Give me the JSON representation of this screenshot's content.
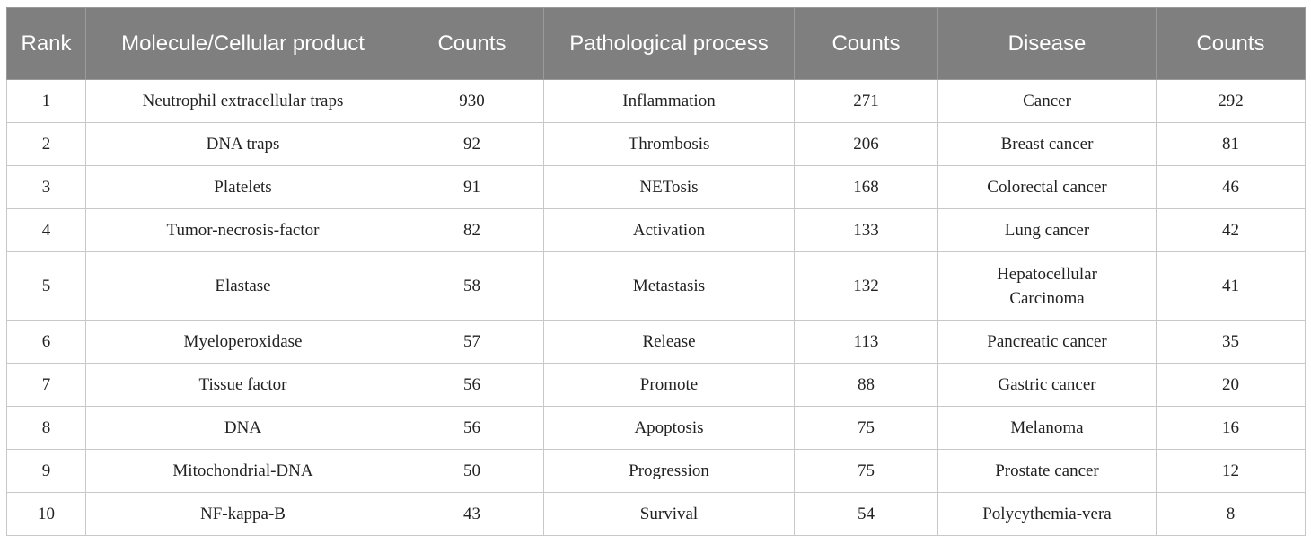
{
  "headers": [
    "Rank",
    "Molecule/Cellular product",
    "Counts",
    "Pathological process",
    "Counts",
    "Disease",
    "Counts"
  ],
  "rows": [
    [
      "1",
      "Neutrophil extracellular traps",
      "930",
      "Inflammation",
      "271",
      "Cancer",
      "292"
    ],
    [
      "2",
      "DNA traps",
      "92",
      "Thrombosis",
      "206",
      "Breast cancer",
      "81"
    ],
    [
      "3",
      "Platelets",
      "91",
      "NETosis",
      "168",
      "Colorectal cancer",
      "46"
    ],
    [
      "4",
      "Tumor-necrosis-factor",
      "82",
      "Activation",
      "133",
      "Lung cancer",
      "42"
    ],
    [
      "5",
      "Elastase",
      "58",
      "Metastasis",
      "132",
      "Hepatocellular Carcinoma",
      "41"
    ],
    [
      "6",
      "Myeloperoxidase",
      "57",
      "Release",
      "113",
      "Pancreatic cancer",
      "35"
    ],
    [
      "7",
      "Tissue factor",
      "56",
      "Promote",
      "88",
      "Gastric cancer",
      "20"
    ],
    [
      "8",
      "DNA",
      "56",
      "Apoptosis",
      "75",
      "Melanoma",
      "16"
    ],
    [
      "9",
      "Mitochondrial-DNA",
      "50",
      "Progression",
      "75",
      "Prostate cancer",
      "12"
    ],
    [
      "10",
      "NF-kappa-B",
      "43",
      "Survival",
      "54",
      "Polycythemia-vera",
      "8"
    ]
  ],
  "colors": {
    "header_bg": "#7f7f7f",
    "header_text": "#ffffff",
    "grid": "#c8c8c8"
  }
}
